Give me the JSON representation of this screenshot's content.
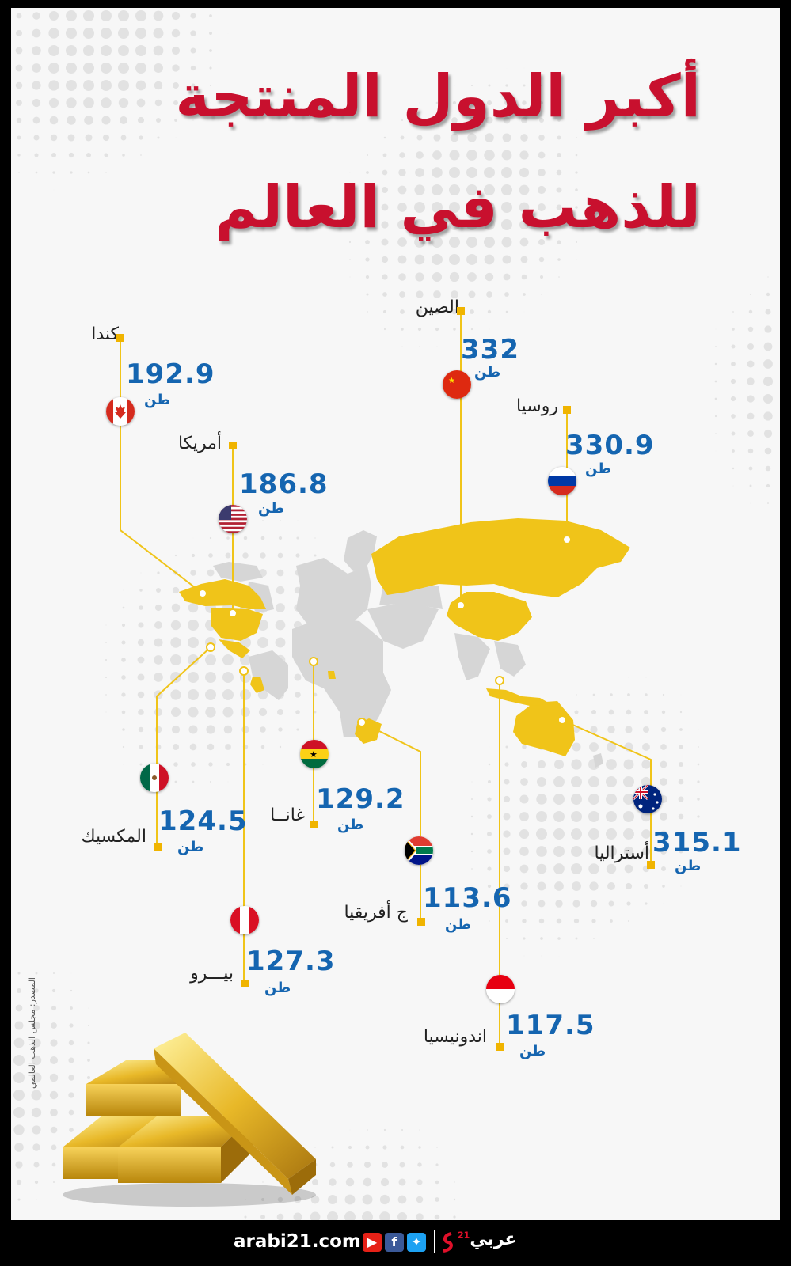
{
  "title": {
    "line1": "أكبر الدول المنتجة",
    "line2": "للذهب في العالم"
  },
  "unit_label": "طن",
  "countries": [
    {
      "key": "china",
      "name": "الصين",
      "value": "332",
      "flag": "china-flag"
    },
    {
      "key": "russia",
      "name": "روسيا",
      "value": "330.9",
      "flag": "russia-flag"
    },
    {
      "key": "australia",
      "name": "أستراليا",
      "value": "315.1",
      "flag": "australia-flag"
    },
    {
      "key": "canada",
      "name": "كندا",
      "value": "192.9",
      "flag": "canada-flag"
    },
    {
      "key": "usa",
      "name": "أمريكا",
      "value": "186.8",
      "flag": "usa-flag"
    },
    {
      "key": "ghana",
      "name": "غانــا",
      "value": "129.2",
      "flag": "ghana-flag"
    },
    {
      "key": "peru",
      "name": "بيـــرو",
      "value": "127.3",
      "flag": "peru-flag"
    },
    {
      "key": "mexico",
      "name": "المكسيك",
      "value": "124.5",
      "flag": "mexico-flag"
    },
    {
      "key": "indonesia",
      "name": "اندونيسيا",
      "value": "117.5",
      "flag": "indonesia-flag"
    },
    {
      "key": "south_africa",
      "name": "ج أفريقيا",
      "value": "113.6",
      "flag": "south-africa-flag"
    }
  ],
  "source": "المصدر: مجلس الذهب العالمي",
  "footer": {
    "site": "arabi21.com",
    "brand": "عربي",
    "brand_sup": "21"
  },
  "colors": {
    "title": "#c8102e",
    "value": "#1565b0",
    "highlight": "#f0c419",
    "land": "#d6d6d6",
    "marker": "#f0b400"
  }
}
